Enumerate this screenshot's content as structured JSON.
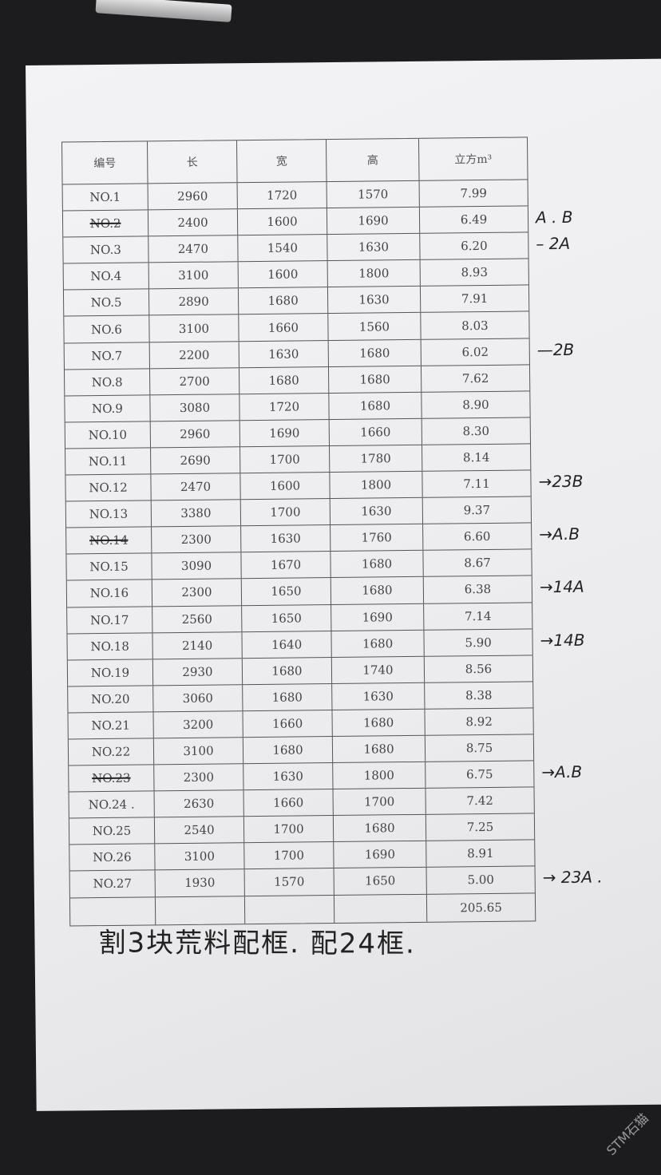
{
  "table": {
    "headers": [
      "编号",
      "长",
      "宽",
      "高",
      "立方m³"
    ],
    "rows": [
      {
        "id": "NO.1",
        "l": "2960",
        "w": "1720",
        "h": "1570",
        "v": "7.99",
        "struck": false,
        "note": ""
      },
      {
        "id": "NO.2",
        "l": "2400",
        "w": "1600",
        "h": "1690",
        "v": "6.49",
        "struck": true,
        "note": "A . B"
      },
      {
        "id": "NO.3",
        "l": "2470",
        "w": "1540",
        "h": "1630",
        "v": "6.20",
        "struck": false,
        "note": "– 2A"
      },
      {
        "id": "NO.4",
        "l": "3100",
        "w": "1600",
        "h": "1800",
        "v": "8.93",
        "struck": false,
        "note": ""
      },
      {
        "id": "NO.5",
        "l": "2890",
        "w": "1680",
        "h": "1630",
        "v": "7.91",
        "struck": false,
        "note": ""
      },
      {
        "id": "NO.6",
        "l": "3100",
        "w": "1660",
        "h": "1560",
        "v": "8.03",
        "struck": false,
        "note": ""
      },
      {
        "id": "NO.7",
        "l": "2200",
        "w": "1630",
        "h": "1680",
        "v": "6.02",
        "struck": false,
        "note": "—2B"
      },
      {
        "id": "NO.8",
        "l": "2700",
        "w": "1680",
        "h": "1680",
        "v": "7.62",
        "struck": false,
        "note": ""
      },
      {
        "id": "NO.9",
        "l": "3080",
        "w": "1720",
        "h": "1680",
        "v": "8.90",
        "struck": false,
        "note": ""
      },
      {
        "id": "NO.10",
        "l": "2960",
        "w": "1690",
        "h": "1660",
        "v": "8.30",
        "struck": false,
        "note": ""
      },
      {
        "id": "NO.11",
        "l": "2690",
        "w": "1700",
        "h": "1780",
        "v": "8.14",
        "struck": false,
        "note": ""
      },
      {
        "id": "NO.12",
        "l": "2470",
        "w": "1600",
        "h": "1800",
        "v": "7.11",
        "struck": false,
        "note": "→23B"
      },
      {
        "id": "NO.13",
        "l": "3380",
        "w": "1700",
        "h": "1630",
        "v": "9.37",
        "struck": false,
        "note": ""
      },
      {
        "id": "NO.14",
        "l": "2300",
        "w": "1630",
        "h": "1760",
        "v": "6.60",
        "struck": true,
        "note": "→A.B"
      },
      {
        "id": "NO.15",
        "l": "3090",
        "w": "1670",
        "h": "1680",
        "v": "8.67",
        "struck": false,
        "note": ""
      },
      {
        "id": "NO.16",
        "l": "2300",
        "w": "1650",
        "h": "1680",
        "v": "6.38",
        "struck": false,
        "note": "→14A"
      },
      {
        "id": "NO.17",
        "l": "2560",
        "w": "1650",
        "h": "1690",
        "v": "7.14",
        "struck": false,
        "note": ""
      },
      {
        "id": "NO.18",
        "l": "2140",
        "w": "1640",
        "h": "1680",
        "v": "5.90",
        "struck": false,
        "note": "→14B"
      },
      {
        "id": "NO.19",
        "l": "2930",
        "w": "1680",
        "h": "1740",
        "v": "8.56",
        "struck": false,
        "note": ""
      },
      {
        "id": "NO.20",
        "l": "3060",
        "w": "1680",
        "h": "1630",
        "v": "8.38",
        "struck": false,
        "note": ""
      },
      {
        "id": "NO.21",
        "l": "3200",
        "w": "1660",
        "h": "1680",
        "v": "8.92",
        "struck": false,
        "note": ""
      },
      {
        "id": "NO.22",
        "l": "3100",
        "w": "1680",
        "h": "1680",
        "v": "8.75",
        "struck": false,
        "note": ""
      },
      {
        "id": "NO.23",
        "l": "2300",
        "w": "1630",
        "h": "1800",
        "v": "6.75",
        "struck": true,
        "note": "→A.B"
      },
      {
        "id": "NO.24 .",
        "l": "2630",
        "w": "1660",
        "h": "1700",
        "v": "7.42",
        "struck": false,
        "note": ""
      },
      {
        "id": "NO.25",
        "l": "2540",
        "w": "1700",
        "h": "1680",
        "v": "7.25",
        "struck": false,
        "note": ""
      },
      {
        "id": "NO.26",
        "l": "3100",
        "w": "1700",
        "h": "1690",
        "v": "8.91",
        "struck": false,
        "note": ""
      },
      {
        "id": "NO.27",
        "l": "1930",
        "w": "1570",
        "h": "1650",
        "v": "5.00",
        "struck": false,
        "note": "→ 23A ."
      }
    ],
    "total": "205.65"
  },
  "handwritten_note": "割3块荒料配框. 配24框.",
  "watermark": "STM石猫"
}
